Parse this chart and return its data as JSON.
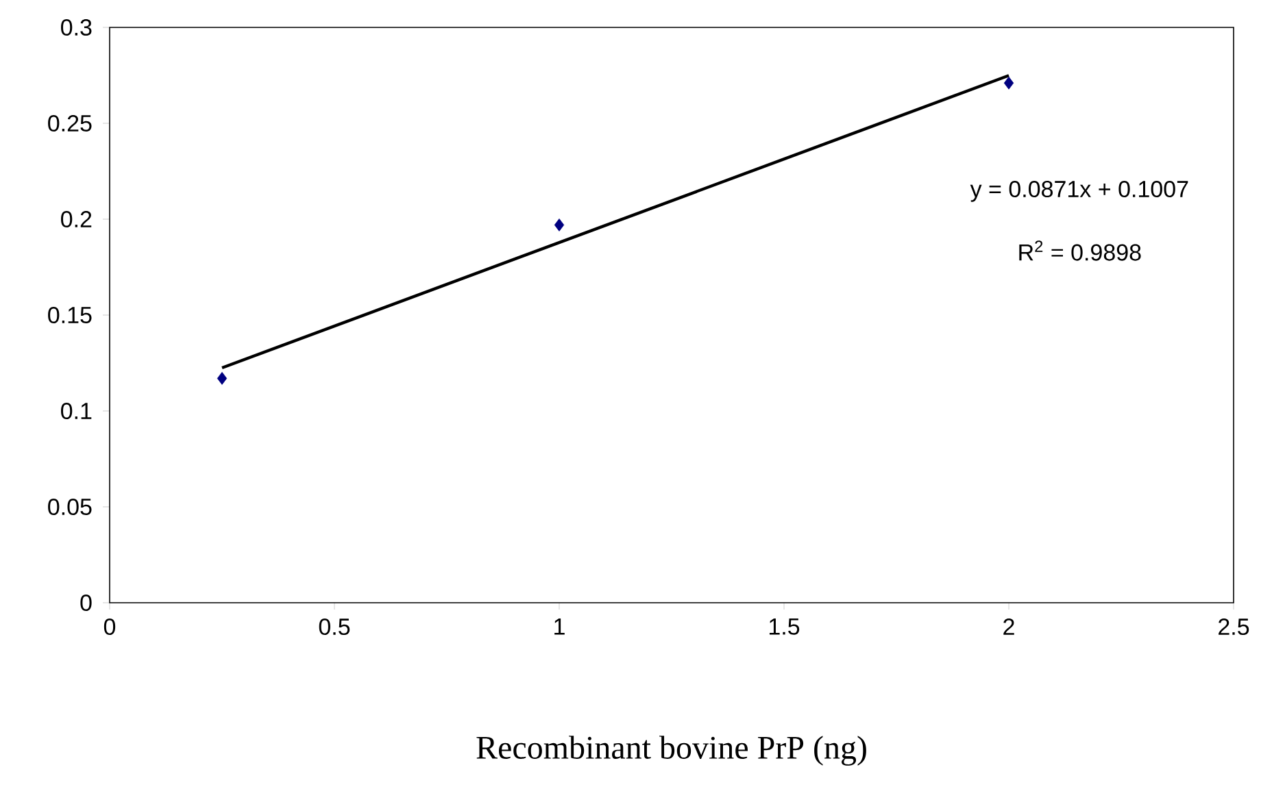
{
  "chart_data": {
    "type": "scatter",
    "xlabel": "Recombinant bovine PrP (ng)",
    "xlim": [
      0,
      2.5
    ],
    "xticks": [
      0,
      0.5,
      1,
      1.5,
      2,
      2.5
    ],
    "ylim": [
      0,
      0.3
    ],
    "yticks": [
      0,
      0.05,
      0.1,
      0.15,
      0.2,
      0.25,
      0.3
    ],
    "grid": false,
    "series": [
      {
        "color": "#000080",
        "marker": "diamond",
        "x": [
          0.25,
          1,
          2
        ],
        "values": [
          0.117,
          0.197,
          0.271
        ]
      },
      {
        "type": "line",
        "color": "#000000",
        "marker": "none",
        "line_style": "solid",
        "x": [
          0.25,
          2
        ],
        "values": [
          0.1225,
          0.2749
        ]
      }
    ],
    "annotations": [
      "y = 0.0871x + 0.1007",
      "R$^{2}$ = 0.9898"
    ]
  }
}
